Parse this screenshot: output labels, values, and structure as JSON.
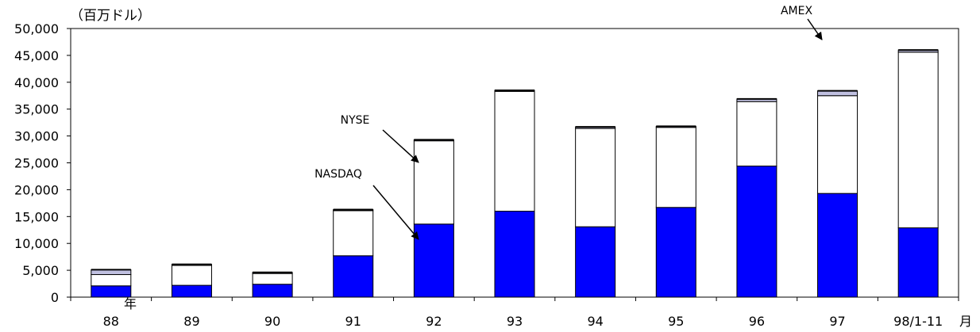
{
  "chart_data": {
    "type": "bar",
    "stacked": true,
    "unit_label": "（百万ドル）",
    "categories": [
      "88",
      "89",
      "90",
      "91",
      "92",
      "93",
      "94",
      "95",
      "96",
      "97",
      "98/1-11"
    ],
    "x_prefix_suffix": "年",
    "x_last_suffix": "月",
    "ylim": [
      0,
      50000
    ],
    "yticks": [
      "0",
      "5,000",
      "10,000",
      "15,000",
      "20,000",
      "25,000",
      "30,000",
      "35,000",
      "40,000",
      "45,000",
      "50,000"
    ],
    "ytick_values": [
      0,
      5000,
      10000,
      15000,
      20000,
      25000,
      30000,
      35000,
      40000,
      45000,
      50000
    ],
    "grid": false,
    "series": [
      {
        "name": "NASDAQ",
        "color": "#0000ff",
        "values": [
          2100,
          2200,
          2400,
          7700,
          13600,
          16000,
          13100,
          16700,
          24400,
          19300,
          12900
        ]
      },
      {
        "name": "NYSE",
        "color": "#ffffff",
        "values": [
          2100,
          3700,
          2000,
          8400,
          15500,
          22300,
          18300,
          14900,
          12000,
          18200,
          32700
        ]
      },
      {
        "name": "AMEX",
        "color": "#c0c0e0",
        "values": [
          900,
          200,
          200,
          200,
          200,
          200,
          300,
          200,
          500,
          900,
          400
        ]
      }
    ],
    "annotations": [
      {
        "text": "NYSE"
      },
      {
        "text": "NASDAQ"
      },
      {
        "text": "AMEX"
      }
    ]
  }
}
